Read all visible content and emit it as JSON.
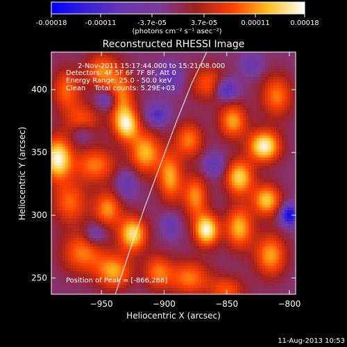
{
  "chart_data": {
    "type": "heatmap",
    "title": "Reconstructed RHESSI Image",
    "xlabel": "Heliocentric X (arcsec)",
    "ylabel": "Heliocentric Y (arcsec)",
    "xlim": [
      -990,
      -795
    ],
    "ylim": [
      237,
      430
    ],
    "xticks": [
      -950,
      -900,
      -850,
      -800
    ],
    "yticks": [
      250,
      300,
      350,
      400
    ],
    "colorbar": {
      "ticks": [
        "-0.00018",
        "-0.00011",
        "-3.7e-05",
        "3.7e-05",
        "0.00011",
        "0.00018"
      ],
      "tick_values": [
        -0.00018,
        -0.00011,
        -3.7e-05,
        3.7e-05,
        0.00011,
        0.00018
      ],
      "range": [
        -0.00018,
        0.00018
      ],
      "unit_label": "(photons cm⁻² s⁻¹ asec⁻²)"
    },
    "info_lines": [
      "2-Nov-2011 15:17:44.000 to 15:21:08.000",
      "Detectors: 4F 5F 6F 7F 8F, Att 0",
      "Energy Range: 25.0 - 50.0 keV",
      "Clean    Total counts: 5.29E+03"
    ],
    "peak_label": "Position of Peak = [-866,288]",
    "peak": {
      "x": -866,
      "y": 288
    },
    "limb": [
      [
        -939,
        237
      ],
      [
        -928,
        270
      ],
      [
        -916,
        305
      ],
      [
        -903,
        340
      ],
      [
        -890,
        375
      ],
      [
        -878,
        405
      ],
      [
        -866,
        430
      ]
    ],
    "blobs": [
      {
        "x": -978,
        "y": 400,
        "sx": 8,
        "sy": 12,
        "v": 0.55
      },
      {
        "x": -950,
        "y": 415,
        "sx": 9,
        "sy": 10,
        "v": 0.6
      },
      {
        "x": -935,
        "y": 395,
        "sx": 8,
        "sy": 14,
        "v": 0.65
      },
      {
        "x": -965,
        "y": 375,
        "sx": 10,
        "sy": 10,
        "v": 0.5
      },
      {
        "x": -930,
        "y": 372,
        "sx": 7,
        "sy": 9,
        "v": 0.85
      },
      {
        "x": -985,
        "y": 345,
        "sx": 8,
        "sy": 12,
        "v": 1.0
      },
      {
        "x": -955,
        "y": 340,
        "sx": 12,
        "sy": 10,
        "v": 0.6
      },
      {
        "x": -915,
        "y": 350,
        "sx": 9,
        "sy": 12,
        "v": 0.75
      },
      {
        "x": -895,
        "y": 330,
        "sx": 7,
        "sy": 14,
        "v": 0.7
      },
      {
        "x": -975,
        "y": 310,
        "sx": 10,
        "sy": 12,
        "v": 0.55
      },
      {
        "x": -945,
        "y": 305,
        "sx": 8,
        "sy": 10,
        "v": 0.65
      },
      {
        "x": -925,
        "y": 285,
        "sx": 8,
        "sy": 10,
        "v": 0.9
      },
      {
        "x": -965,
        "y": 270,
        "sx": 12,
        "sy": 12,
        "v": 0.6
      },
      {
        "x": -940,
        "y": 255,
        "sx": 10,
        "sy": 10,
        "v": 0.7
      },
      {
        "x": -905,
        "y": 255,
        "sx": 8,
        "sy": 10,
        "v": 0.55
      },
      {
        "x": -880,
        "y": 250,
        "sx": 12,
        "sy": 10,
        "v": 0.6
      },
      {
        "x": -866,
        "y": 288,
        "sx": 7,
        "sy": 9,
        "v": 1.0
      },
      {
        "x": -875,
        "y": 315,
        "sx": 7,
        "sy": 12,
        "v": 0.65
      },
      {
        "x": -880,
        "y": 360,
        "sx": 8,
        "sy": 10,
        "v": 0.6
      },
      {
        "x": -865,
        "y": 405,
        "sx": 10,
        "sy": 10,
        "v": 0.5
      },
      {
        "x": -845,
        "y": 375,
        "sx": 8,
        "sy": 10,
        "v": 0.7
      },
      {
        "x": -840,
        "y": 330,
        "sx": 8,
        "sy": 10,
        "v": 0.85
      },
      {
        "x": -840,
        "y": 290,
        "sx": 8,
        "sy": 12,
        "v": 0.75
      },
      {
        "x": -820,
        "y": 355,
        "sx": 9,
        "sy": 9,
        "v": 1.0
      },
      {
        "x": -810,
        "y": 395,
        "sx": 9,
        "sy": 12,
        "v": 0.6
      },
      {
        "x": -818,
        "y": 312,
        "sx": 8,
        "sy": 9,
        "v": 0.8
      },
      {
        "x": -815,
        "y": 268,
        "sx": 9,
        "sy": 12,
        "v": 0.7
      },
      {
        "x": -850,
        "y": 240,
        "sx": 10,
        "sy": 8,
        "v": 0.5
      },
      {
        "x": -930,
        "y": 325,
        "sx": 6,
        "sy": 8,
        "v": -0.4
      },
      {
        "x": -905,
        "y": 380,
        "sx": 6,
        "sy": 6,
        "v": -0.55
      },
      {
        "x": -945,
        "y": 392,
        "sx": 6,
        "sy": 6,
        "v": -0.5
      },
      {
        "x": -895,
        "y": 410,
        "sx": 7,
        "sy": 7,
        "v": -0.45
      },
      {
        "x": -860,
        "y": 340,
        "sx": 6,
        "sy": 6,
        "v": -0.45
      },
      {
        "x": -850,
        "y": 400,
        "sx": 6,
        "sy": 6,
        "v": -0.65
      },
      {
        "x": -800,
        "y": 300,
        "sx": 5,
        "sy": 6,
        "v": -0.9
      },
      {
        "x": -965,
        "y": 365,
        "sx": 6,
        "sy": 6,
        "v": -0.35
      },
      {
        "x": -895,
        "y": 292,
        "sx": 5,
        "sy": 7,
        "v": -0.35
      },
      {
        "x": -955,
        "y": 285,
        "sx": 6,
        "sy": 6,
        "v": -0.4
      },
      {
        "x": -830,
        "y": 420,
        "sx": 6,
        "sy": 6,
        "v": -0.35
      }
    ]
  },
  "footer": {
    "timestamp": "11-Aug-2013 10:53"
  },
  "colors": {
    "background": "#000000",
    "text": "#ffffff",
    "limb": "#ffffff",
    "colormap": [
      "#0000ff",
      "#3a20d8",
      "#6a38b0",
      "#7a3a96",
      "#a02020",
      "#ff4000",
      "#ffc020",
      "#ffffff"
    ]
  }
}
